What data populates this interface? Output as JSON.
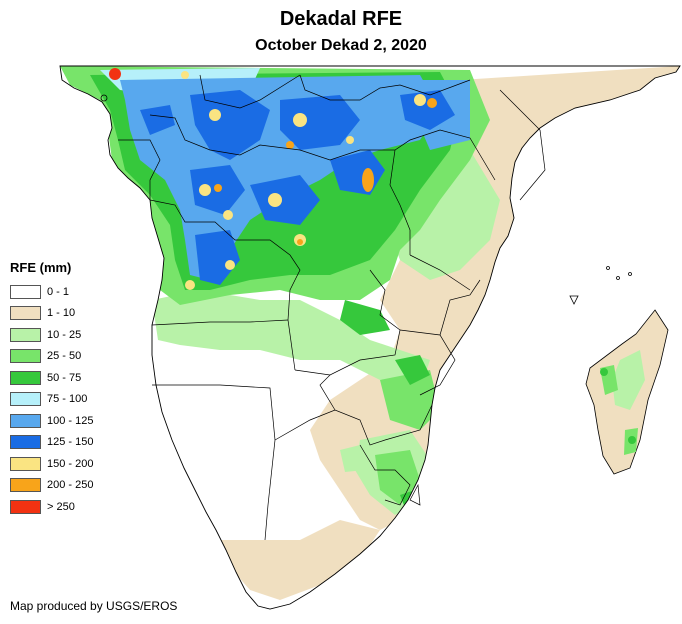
{
  "title": "Dekadal RFE",
  "subtitle": "October Dekad 2, 2020",
  "legend": {
    "title": "RFE (mm)",
    "items": [
      {
        "label": "0 - 1",
        "color": "#ffffff"
      },
      {
        "label": "1 - 10",
        "color": "#f0dfc0"
      },
      {
        "label": "10 - 25",
        "color": "#b8f2a8"
      },
      {
        "label": "25 - 50",
        "color": "#78e46a"
      },
      {
        "label": "50 - 75",
        "color": "#36c83c"
      },
      {
        "label": "75 - 100",
        "color": "#b6f0fa"
      },
      {
        "label": "100 - 125",
        "color": "#58a8ee"
      },
      {
        "label": "125 - 150",
        "color": "#1a6ce4"
      },
      {
        "label": "150 - 200",
        "color": "#fae482"
      },
      {
        "label": "200 - 250",
        "color": "#f8a41a"
      },
      {
        "label": "> 250",
        "color": "#f23212"
      }
    ]
  },
  "credit": "Map produced by USGS/EROS"
}
